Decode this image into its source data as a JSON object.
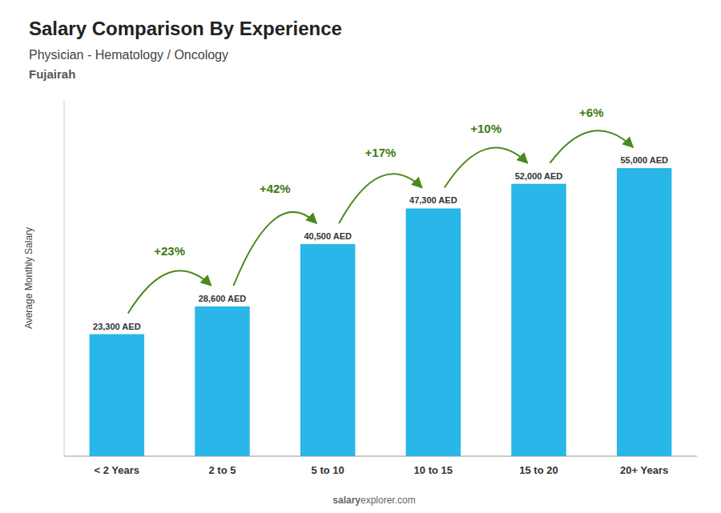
{
  "chart_data": {
    "type": "bar",
    "title": "Salary Comparison By Experience",
    "subtitle": [
      "Physician - Hematology / Oncology",
      "Fujairah"
    ],
    "categories": [
      "< 2 Years",
      "2 to 5",
      "5 to 10",
      "10 to 15",
      "15 to 20",
      "20+ Years"
    ],
    "values": [
      23300,
      28600,
      40500,
      47300,
      52000,
      55000
    ],
    "value_labels": [
      "23,300 AED",
      "28,600 AED",
      "40,500 AED",
      "47,300 AED",
      "52,000 AED",
      "55,000 AED"
    ],
    "data_labels": true,
    "annotations": [
      null,
      "+23%",
      "+42%",
      "+17%",
      "+10%",
      "+6%"
    ],
    "color": "#29b6e8",
    "ylabel": "Average Monthly Salary",
    "ylim": [
      0,
      68000
    ],
    "tick_labels": "x",
    "grid": false,
    "footer": [
      "salary",
      "explorer.com"
    ]
  }
}
